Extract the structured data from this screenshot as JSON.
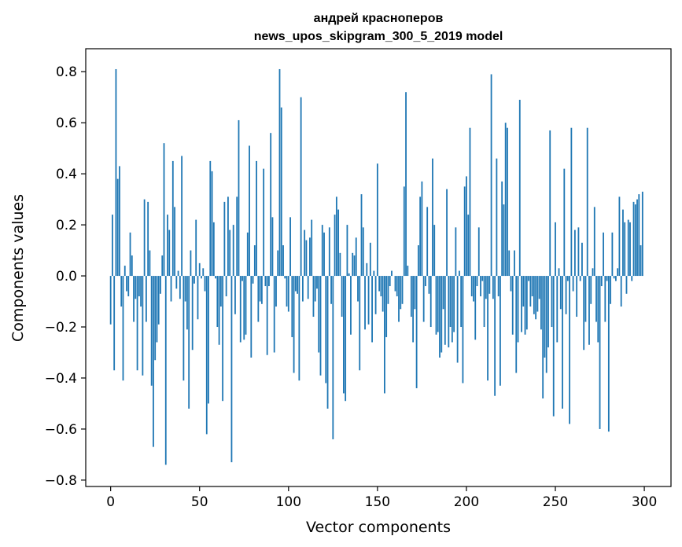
{
  "chart_data": {
    "type": "bar",
    "title_line1": "андрей красноперов",
    "title_line2": "news_upos_skipgram_300_5_2019 model",
    "xlabel": "Vector components",
    "ylabel": "Components values",
    "xlim": [
      -14,
      315
    ],
    "ylim": [
      -0.825,
      0.89
    ],
    "xticks": [
      0,
      50,
      100,
      150,
      200,
      250,
      300
    ],
    "xtick_labels": [
      "0",
      "50",
      "100",
      "150",
      "200",
      "250",
      "300"
    ],
    "yticks": [
      -0.8,
      -0.6,
      -0.4,
      -0.2,
      0.0,
      0.2,
      0.4,
      0.6,
      0.8
    ],
    "ytick_labels": [
      "−0.8",
      "−0.6",
      "−0.4",
      "−0.2",
      "0.0",
      "0.2",
      "0.4",
      "0.6",
      "0.8"
    ],
    "bar_color": "#1f77b4",
    "grid": false,
    "values": [
      -0.19,
      0.24,
      -0.37,
      0.81,
      0.38,
      0.43,
      -0.12,
      -0.41,
      0.04,
      -0.06,
      -0.08,
      0.17,
      0.08,
      -0.18,
      -0.09,
      -0.37,
      -0.08,
      -0.12,
      -0.39,
      0.3,
      -0.18,
      0.29,
      0.1,
      -0.43,
      -0.67,
      -0.33,
      -0.26,
      -0.19,
      -0.07,
      0.08,
      0.52,
      -0.74,
      0.24,
      0.18,
      -0.1,
      0.45,
      0.27,
      -0.05,
      0.02,
      -0.09,
      0.47,
      -0.41,
      -0.1,
      -0.21,
      -0.52,
      0.1,
      -0.29,
      -0.03,
      0.22,
      -0.17,
      0.05,
      -0.01,
      0.03,
      -0.06,
      -0.62,
      -0.5,
      0.45,
      0.41,
      0.21,
      -0.01,
      -0.2,
      -0.27,
      -0.12,
      -0.49,
      0.29,
      -0.08,
      0.31,
      0.18,
      -0.73,
      0.2,
      -0.15,
      0.31,
      0.61,
      -0.26,
      -0.02,
      -0.25,
      -0.23,
      0.17,
      0.51,
      -0.32,
      -0.03,
      0.12,
      0.45,
      -0.18,
      -0.1,
      -0.11,
      0.42,
      -0.04,
      -0.31,
      -0.04,
      0.56,
      0.23,
      -0.3,
      -0.12,
      0.1,
      0.81,
      0.66,
      0.12,
      -0.01,
      -0.12,
      -0.14,
      0.23,
      -0.24,
      -0.38,
      -0.06,
      -0.07,
      -0.41,
      0.7,
      -0.1,
      0.18,
      0.14,
      -0.09,
      0.15,
      0.22,
      -0.16,
      -0.1,
      -0.05,
      -0.3,
      -0.39,
      0.2,
      0.17,
      -0.42,
      -0.52,
      0.19,
      -0.11,
      -0.64,
      0.24,
      0.31,
      0.26,
      0.09,
      -0.16,
      -0.46,
      -0.49,
      0.2,
      0.01,
      -0.23,
      0.09,
      0.08,
      0.15,
      -0.1,
      -0.37,
      0.32,
      0.19,
      -0.21,
      0.05,
      -0.19,
      0.13,
      -0.26,
      0.02,
      -0.15,
      0.44,
      -0.06,
      -0.08,
      -0.14,
      -0.46,
      -0.24,
      -0.11,
      -0.04,
      0.02,
      0.0,
      -0.06,
      -0.08,
      -0.18,
      -0.13,
      -0.11,
      0.35,
      0.72,
      0.04,
      0.0,
      -0.16,
      -0.26,
      -0.13,
      -0.44,
      0.12,
      0.31,
      0.37,
      -0.18,
      -0.04,
      0.27,
      -0.07,
      -0.2,
      0.46,
      0.2,
      -0.23,
      -0.22,
      -0.32,
      -0.3,
      -0.13,
      -0.27,
      0.34,
      -0.28,
      -0.2,
      -0.26,
      -0.22,
      0.19,
      -0.34,
      0.02,
      -0.2,
      -0.42,
      0.35,
      0.39,
      0.24,
      0.58,
      -0.08,
      -0.1,
      -0.25,
      -0.04,
      0.19,
      -0.08,
      -0.02,
      -0.2,
      -0.09,
      -0.41,
      -0.07,
      0.79,
      -0.09,
      -0.47,
      0.46,
      -0.08,
      -0.43,
      0.37,
      0.28,
      0.6,
      0.58,
      0.1,
      -0.06,
      -0.23,
      0.1,
      -0.38,
      -0.26,
      0.69,
      -0.22,
      -0.12,
      -0.23,
      -0.21,
      -0.02,
      -0.12,
      -0.08,
      -0.15,
      -0.17,
      -0.14,
      -0.09,
      -0.21,
      -0.48,
      -0.32,
      -0.38,
      -0.28,
      0.57,
      -0.2,
      -0.55,
      0.21,
      -0.26,
      0.03,
      -0.13,
      -0.52,
      0.42,
      -0.15,
      -0.02,
      -0.58,
      0.58,
      -0.06,
      0.18,
      -0.16,
      0.19,
      -0.02,
      0.13,
      -0.29,
      -0.18,
      0.58,
      -0.27,
      -0.11,
      0.03,
      0.27,
      -0.18,
      -0.26,
      -0.6,
      -0.04,
      0.17,
      -0.18,
      -0.02,
      -0.61,
      -0.11,
      0.17,
      -0.01,
      -0.02,
      0.03,
      0.31,
      -0.12,
      0.26,
      0.21,
      -0.07,
      0.22,
      0.21,
      -0.02,
      0.29,
      0.28,
      0.3,
      0.32,
      0.12,
      0.33
    ]
  }
}
